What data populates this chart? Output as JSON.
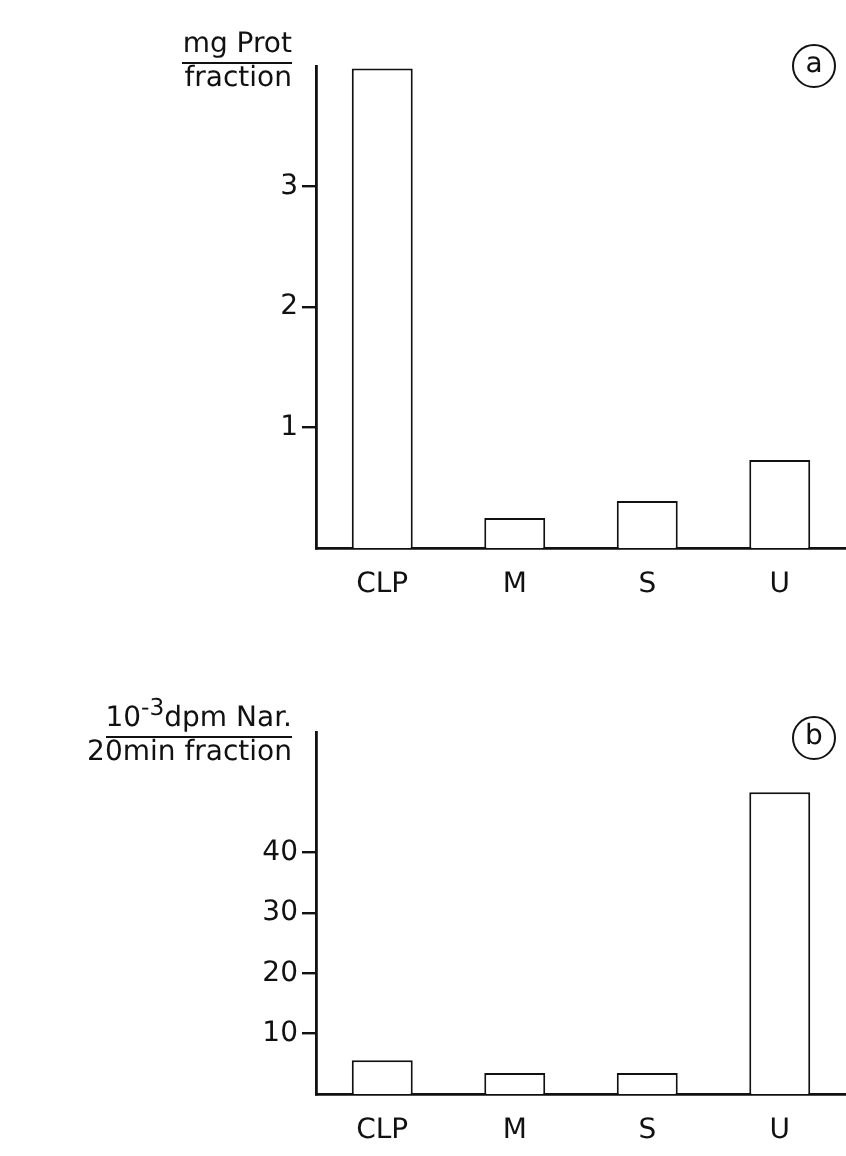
{
  "chart_data": [
    {
      "type": "bar",
      "ylabel": "mg Prot\nfraction",
      "categories": [
        "CLP",
        "M",
        "S",
        "U"
      ],
      "values": [
        3.98,
        0.25,
        0.39,
        0.73
      ],
      "color": "#ffffff",
      "ylim": [
        0,
        4
      ],
      "yticks": [
        1,
        2,
        3
      ],
      "grid": false,
      "annotations": [
        "a"
      ]
    },
    {
      "type": "bar",
      "ylabel": "10$^{-3}$dpm Nar.\n20min fraction",
      "categories": [
        "CLP",
        "M",
        "S",
        "U"
      ],
      "values": [
        5.6,
        3.5,
        3.5,
        50
      ],
      "color": "#ffffff",
      "ylim": [
        0,
        60
      ],
      "yticks": [
        10,
        20,
        30,
        40
      ],
      "grid": false,
      "annotations": [
        "b"
      ]
    }
  ]
}
